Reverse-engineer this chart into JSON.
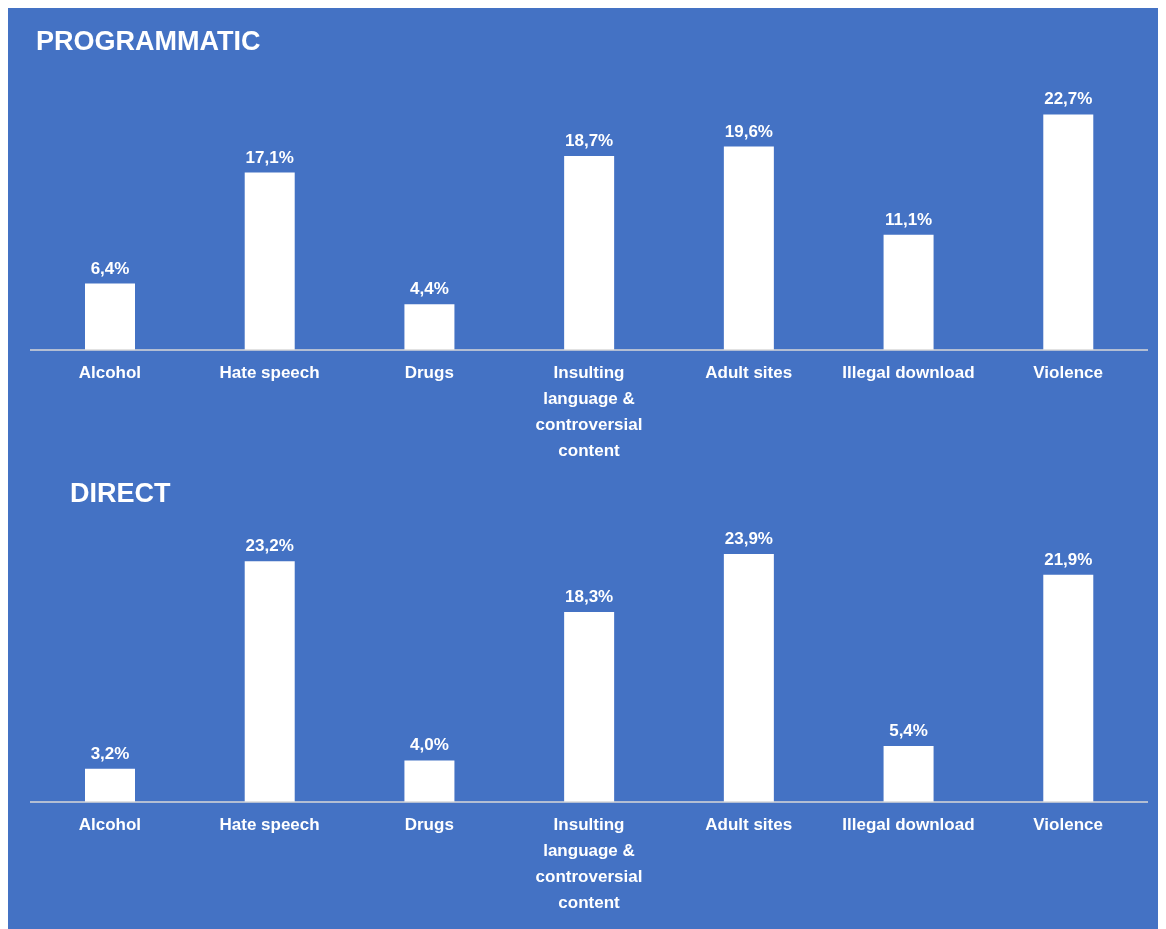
{
  "chart_data": [
    {
      "type": "bar",
      "title": "PROGRAMMATIC",
      "categories": [
        "Alcohol",
        "Hate speech",
        "Drugs",
        "Insulting language & controversial content",
        "Adult sites",
        "Illegal download",
        "Violence"
      ],
      "values": [
        6.4,
        17.1,
        4.4,
        18.7,
        19.6,
        11.1,
        22.7
      ],
      "value_labels": [
        "6,4%",
        "17,1%",
        "4,4%",
        "18,7%",
        "19,6%",
        "11,1%",
        "22,7%"
      ],
      "color": "#ffffff"
    },
    {
      "type": "bar",
      "title": "DIRECT",
      "categories": [
        "Alcohol",
        "Hate speech",
        "Drugs",
        "Insulting language & controversial content",
        "Adult sites",
        "Illegal download",
        "Violence"
      ],
      "values": [
        3.2,
        23.2,
        4.0,
        18.3,
        23.9,
        5.4,
        21.9
      ],
      "value_labels": [
        "3,2%",
        "23,2%",
        "4,0%",
        "18,3%",
        "23,9%",
        "5,4%",
        "21,9%"
      ],
      "color": "#ffffff"
    }
  ]
}
